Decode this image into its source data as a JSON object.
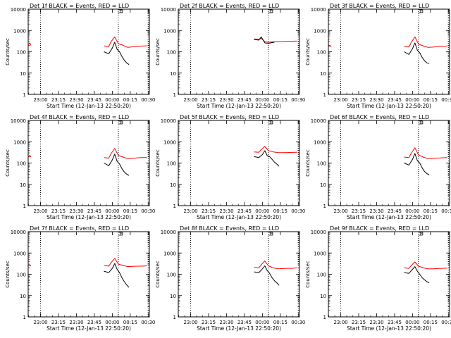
{
  "colors": {
    "events": "#000000",
    "lld": "#ff0000",
    "axis": "#000000",
    "background": "#ffffff"
  },
  "chart_data": [
    {
      "type": "line",
      "title": "Det 1f BLACK = Events, RED = LLD",
      "xlabel": "Start Time (12-Jan-13 22:50:20)",
      "ylabel": "Counts/sec",
      "yscale": "log",
      "ylim": [
        1,
        10000
      ],
      "yticks": [
        "1",
        "10",
        "100",
        "1000",
        "10000"
      ],
      "xticks": [
        "23:00",
        "23:15",
        "23:30",
        "23:45",
        "00:00",
        "00:15",
        "00:30"
      ],
      "marker_label": "E",
      "series": [
        {
          "color": "red",
          "segments": [
            {
              "x": [
                "22:50",
                "22:51",
                "22:52"
              ],
              "y": [
                220,
                260,
                200
              ]
            },
            {
              "x": [
                "23:53",
                "23:57",
                "23:59",
                "00:02",
                "00:05",
                "00:09",
                "00:13",
                "00:17",
                "00:21",
                "00:25",
                "00:29"
              ],
              "y": [
                190,
                175,
                300,
                500,
                240,
                200,
                160,
                170,
                180,
                185,
                190
              ]
            }
          ]
        },
        {
          "color": "black",
          "segments": [
            {
              "x": [
                "23:53",
                "23:57",
                "00:00",
                "00:02",
                "00:04",
                "00:06",
                "00:08",
                "00:10",
                "00:12",
                "00:14"
              ],
              "y": [
                100,
                80,
                150,
                280,
                130,
                100,
                60,
                40,
                30,
                25
              ]
            }
          ]
        }
      ]
    },
    {
      "type": "line",
      "title": "Det 2f BLACK = Events, RED = LLD",
      "xlabel": "Start Time (12-Jan-13 22:50:20)",
      "ylabel": "Counts/sec",
      "yscale": "log",
      "ylim": [
        1,
        10000
      ],
      "yticks": [
        "1",
        "10",
        "100",
        "1000",
        "10000"
      ],
      "xticks": [
        "23:00",
        "23:15",
        "23:30",
        "23:45",
        "00:00",
        "00:15",
        "00:30"
      ],
      "marker_label": "E",
      "series": [
        {
          "color": "red",
          "segments": [
            {
              "x": [
                "22:50",
                "22:51"
              ],
              "y": [
                380,
                400
              ]
            },
            {
              "x": [
                "23:53",
                "23:57",
                "23:59",
                "00:02",
                "00:05",
                "00:08",
                "00:12",
                "00:16",
                "00:20",
                "00:24",
                "00:29"
              ],
              "y": [
                400,
                380,
                420,
                300,
                280,
                290,
                300,
                300,
                310,
                310,
                320
              ]
            }
          ]
        },
        {
          "color": "black",
          "segments": [
            {
              "x": [
                "23:53",
                "23:57",
                "23:59",
                "00:02",
                "00:05",
                "00:08",
                "00:10"
              ],
              "y": [
                380,
                350,
                500,
                260,
                250,
                270,
                280
              ]
            }
          ]
        }
      ]
    },
    {
      "type": "line",
      "title": "Det 3f BLACK = Events, RED = LLD",
      "xlabel": "Start Time (12-Jan-13 22:50:20)",
      "ylabel": "Counts/sec",
      "yscale": "log",
      "ylim": [
        1,
        10000
      ],
      "yticks": [
        "1",
        "10",
        "100",
        "1000",
        "10000"
      ],
      "xticks": [
        "23:00",
        "23:15",
        "23:30",
        "23:45",
        "00:00",
        "00:15",
        "00:30"
      ],
      "marker_label": "E",
      "series": [
        {
          "color": "red",
          "segments": [
            {
              "x": [
                "22:50",
                "22:51",
                "22:52"
              ],
              "y": [
                180,
                200,
                170
              ]
            },
            {
              "x": [
                "23:53",
                "23:57",
                "23:59",
                "00:02",
                "00:05",
                "00:09",
                "00:13",
                "00:17",
                "00:21",
                "00:25",
                "00:29"
              ],
              "y": [
                180,
                170,
                280,
                500,
                230,
                190,
                160,
                165,
                175,
                180,
                185
              ]
            }
          ]
        },
        {
          "color": "black",
          "segments": [
            {
              "x": [
                "23:53",
                "23:57",
                "00:00",
                "00:02",
                "00:04",
                "00:06",
                "00:08",
                "00:10",
                "00:12",
                "00:14"
              ],
              "y": [
                100,
                75,
                140,
                260,
                120,
                90,
                55,
                38,
                30,
                28
              ]
            }
          ]
        }
      ]
    },
    {
      "type": "line",
      "title": "Det 4f BLACK = Events, RED = LLD",
      "xlabel": "Start Time (12-Jan-13 22:50:20)",
      "ylabel": "Counts/sec",
      "yscale": "log",
      "ylim": [
        1,
        10000
      ],
      "yticks": [
        "1",
        "10",
        "100",
        "1000",
        "10000"
      ],
      "xticks": [
        "23:00",
        "23:15",
        "23:30",
        "23:45",
        "00:00",
        "00:15",
        "00:30"
      ],
      "marker_label": "E",
      "series": [
        {
          "color": "red",
          "segments": [
            {
              "x": [
                "22:50",
                "22:51",
                "22:52"
              ],
              "y": [
                200,
                230,
                190
              ]
            },
            {
              "x": [
                "23:53",
                "23:57",
                "23:59",
                "00:02",
                "00:05",
                "00:09",
                "00:13",
                "00:17",
                "00:21",
                "00:25",
                "00:29"
              ],
              "y": [
                180,
                170,
                280,
                480,
                230,
                190,
                160,
                165,
                175,
                180,
                180
              ]
            }
          ]
        },
        {
          "color": "black",
          "segments": [
            {
              "x": [
                "23:53",
                "23:57",
                "00:00",
                "00:02",
                "00:04",
                "00:06",
                "00:08",
                "00:10",
                "00:12",
                "00:14"
              ],
              "y": [
                100,
                75,
                140,
                260,
                120,
                90,
                55,
                38,
                30,
                26
              ]
            }
          ]
        }
      ]
    },
    {
      "type": "line",
      "title": "Det 5f BLACK = Events, RED = LLD",
      "xlabel": "Start Time (12-Jan-13 22:50:20)",
      "ylabel": "Counts/sec",
      "yscale": "log",
      "ylim": [
        1,
        10000
      ],
      "yticks": [
        "1",
        "10",
        "100",
        "1000",
        "10000"
      ],
      "xticks": [
        "23:00",
        "23:15",
        "23:30",
        "23:45",
        "00:00",
        "00:15",
        "00:30"
      ],
      "marker_label": "E",
      "series": [
        {
          "color": "red",
          "segments": [
            {
              "x": [
                "22:50",
                "22:51"
              ],
              "y": [
                330,
                360
              ]
            },
            {
              "x": [
                "23:53",
                "23:57",
                "23:59",
                "00:02",
                "00:05",
                "00:09",
                "00:13",
                "00:17",
                "00:21",
                "00:25",
                "00:29"
              ],
              "y": [
                330,
                320,
                420,
                600,
                380,
                330,
                310,
                305,
                310,
                315,
                320
              ]
            }
          ]
        },
        {
          "color": "black",
          "segments": [
            {
              "x": [
                "23:53",
                "23:57",
                "00:00",
                "00:02",
                "00:04",
                "00:06",
                "00:08",
                "00:10",
                "00:12",
                "00:14"
              ],
              "y": [
                200,
                180,
                250,
                380,
                220,
                200,
                150,
                110,
                90,
                70
              ]
            }
          ]
        }
      ]
    },
    {
      "type": "line",
      "title": "Det 6f BLACK = Events, RED = LLD",
      "xlabel": "Start Time (12-Jan-13 22:50:20)",
      "ylabel": "Counts/sec",
      "yscale": "log",
      "ylim": [
        1,
        10000
      ],
      "yticks": [
        "1",
        "10",
        "100",
        "1000",
        "10000"
      ],
      "xticks": [
        "23:00",
        "23:15",
        "23:30",
        "23:45",
        "00:00",
        "00:15",
        "00:30"
      ],
      "marker_label": "E",
      "series": [
        {
          "color": "red",
          "segments": [
            {
              "x": [
                "23:53",
                "23:57",
                "23:59",
                "00:02",
                "00:05",
                "00:09",
                "00:13",
                "00:17",
                "00:21",
                "00:25",
                "00:29"
              ],
              "y": [
                190,
                180,
                290,
                520,
                240,
                190,
                160,
                165,
                170,
                175,
                180
              ]
            }
          ]
        },
        {
          "color": "black",
          "segments": [
            {
              "x": [
                "23:53",
                "23:57",
                "00:00",
                "00:02",
                "00:04",
                "00:06",
                "00:08",
                "00:10",
                "00:12",
                "00:14"
              ],
              "y": [
                100,
                80,
                150,
                280,
                130,
                100,
                60,
                40,
                32,
                28
              ]
            }
          ]
        }
      ]
    },
    {
      "type": "line",
      "title": "Det 7f BLACK = Events, RED = LLD",
      "xlabel": "Start Time (12-Jan-13 22:50:20)",
      "ylabel": "Counts/sec",
      "yscale": "log",
      "ylim": [
        1,
        10000
      ],
      "yticks": [
        "1",
        "10",
        "100",
        "1000",
        "10000"
      ],
      "xticks": [
        "23:00",
        "23:15",
        "23:30",
        "23:45",
        "00:00",
        "00:15",
        "00:30"
      ],
      "marker_label": "E",
      "series": [
        {
          "color": "red",
          "segments": [
            {
              "x": [
                "22:50",
                "22:51",
                "22:52"
              ],
              "y": [
                250,
                280,
                240
              ]
            },
            {
              "x": [
                "23:53",
                "23:57",
                "23:59",
                "00:02",
                "00:05",
                "00:09",
                "00:13",
                "00:17",
                "00:21",
                "00:25",
                "00:29"
              ],
              "y": [
                260,
                240,
                350,
                560,
                300,
                260,
                230,
                235,
                240,
                240,
                250
              ]
            }
          ]
        },
        {
          "color": "black",
          "segments": [
            {
              "x": [
                "23:53",
                "23:57",
                "00:00",
                "00:02",
                "00:04",
                "00:06",
                "00:08",
                "00:10",
                "00:12",
                "00:14"
              ],
              "y": [
                140,
                120,
                190,
                320,
                170,
                120,
                70,
                45,
                32,
                24
              ]
            }
          ]
        }
      ]
    },
    {
      "type": "line",
      "title": "Det 8f BLACK = Events, RED = LLD",
      "xlabel": "Start Time (12-Jan-13 22:50:20)",
      "ylabel": "Counts/sec",
      "yscale": "log",
      "ylim": [
        1,
        10000
      ],
      "yticks": [
        "1",
        "10",
        "100",
        "1000",
        "10000"
      ],
      "xticks": [
        "23:00",
        "23:15",
        "23:30",
        "23:45",
        "00:00",
        "00:15",
        "00:30"
      ],
      "marker_label": "E",
      "series": [
        {
          "color": "red",
          "segments": [
            {
              "x": [
                "22:50",
                "22:51"
              ],
              "y": [
                200,
                220
              ]
            },
            {
              "x": [
                "23:53",
                "23:57",
                "23:59",
                "00:02",
                "00:05",
                "00:09",
                "00:13",
                "00:17",
                "00:21",
                "00:25",
                "00:29"
              ],
              "y": [
                210,
                200,
                280,
                420,
                250,
                200,
                180,
                185,
                190,
                190,
                200
              ]
            }
          ]
        },
        {
          "color": "black",
          "segments": [
            {
              "x": [
                "23:53",
                "23:57",
                "00:00",
                "00:02",
                "00:04",
                "00:06",
                "00:08",
                "00:10",
                "00:12",
                "00:14"
              ],
              "y": [
                130,
                120,
                180,
                250,
                150,
                110,
                70,
                50,
                40,
                30
              ]
            }
          ]
        }
      ]
    },
    {
      "type": "line",
      "title": "Det 9f BLACK = Events, RED = LLD",
      "xlabel": "Start Time (12-Jan-13 22:50:20)",
      "ylabel": "Counts/sec",
      "yscale": "log",
      "ylim": [
        1,
        10000
      ],
      "yticks": [
        "1",
        "10",
        "100",
        "1000",
        "10000"
      ],
      "xticks": [
        "23:00",
        "23:15",
        "23:30",
        "23:45",
        "00:00",
        "00:15",
        "00:30"
      ],
      "marker_label": "E",
      "series": [
        {
          "color": "red",
          "segments": [
            {
              "x": [
                "23:53",
                "23:57",
                "23:59",
                "00:02",
                "00:05",
                "00:09",
                "00:13",
                "00:17",
                "00:21",
                "00:25",
                "00:29"
              ],
              "y": [
                200,
                190,
                260,
                380,
                240,
                200,
                180,
                180,
                185,
                190,
                195
              ]
            }
          ]
        },
        {
          "color": "black",
          "segments": [
            {
              "x": [
                "23:53",
                "23:57",
                "00:00",
                "00:02",
                "00:04",
                "00:06",
                "00:08",
                "00:10",
                "00:12",
                "00:14"
              ],
              "y": [
                120,
                110,
                170,
                230,
                140,
                100,
                70,
                55,
                45,
                40
              ]
            }
          ]
        }
      ]
    }
  ]
}
